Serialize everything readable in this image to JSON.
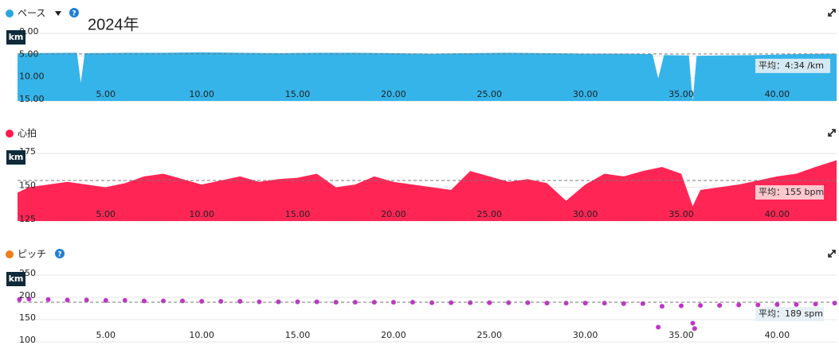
{
  "year_label": "2024年",
  "chart_data": [
    {
      "type": "area",
      "title": "ペース",
      "help": "?",
      "unit": "km",
      "color": "#35b4ea",
      "dot": "#2aa6e0",
      "x": [
        0.4,
        0.5,
        3.5,
        3.7,
        3.9,
        6,
        8,
        10,
        12,
        14,
        16,
        18,
        20,
        22,
        24,
        26,
        28,
        30,
        32,
        33.5,
        33.8,
        34.1,
        35.4,
        35.6,
        35.8,
        37,
        39,
        41,
        43.1
      ],
      "values": [
        4.6,
        4.4,
        4.3,
        11,
        4.4,
        4.3,
        4.3,
        4.2,
        4.3,
        4.4,
        4.3,
        4.3,
        4.4,
        4.5,
        4.4,
        4.3,
        4.4,
        4.5,
        4.5,
        4.6,
        10,
        4.8,
        4.9,
        15,
        5.0,
        4.9,
        4.8,
        4.6,
        4.5
      ],
      "xlim": [
        0.4,
        43.1
      ],
      "ylim": [
        15,
        0
      ],
      "yticks": [
        {
          "value": 0,
          "label": "0.00"
        },
        {
          "value": 5,
          "label": "5.00"
        },
        {
          "value": 10,
          "label": "10.00"
        },
        {
          "value": 15,
          "label": "15.00"
        }
      ],
      "xticks": [
        {
          "value": 5,
          "label": "5.00"
        },
        {
          "value": 10,
          "label": "10.00"
        },
        {
          "value": 15,
          "label": "15.00"
        },
        {
          "value": 20,
          "label": "20.00"
        },
        {
          "value": 25,
          "label": "25.00"
        },
        {
          "value": 30,
          "label": "30.00"
        },
        {
          "value": 35,
          "label": "35.00"
        },
        {
          "value": 40,
          "label": "40.00"
        }
      ],
      "average": {
        "value": 4.567,
        "label": "平均：4:34 /km"
      }
    },
    {
      "type": "area",
      "title": "心拍",
      "unit": "km",
      "color": "#ff2655",
      "dot": "#ff1a4b",
      "x": [
        0.4,
        1,
        2,
        3,
        4,
        5,
        6,
        7,
        8,
        9,
        10,
        11,
        12,
        13,
        14,
        15,
        16,
        17,
        18,
        19,
        20,
        21,
        22,
        23,
        24,
        25,
        26,
        27,
        28,
        29,
        30,
        31,
        32,
        33,
        34,
        35,
        35.6,
        36,
        37,
        38,
        39,
        40,
        41,
        42,
        43.1
      ],
      "values": [
        146,
        150,
        152,
        154,
        152,
        150,
        153,
        158,
        160,
        156,
        152,
        155,
        158,
        154,
        156,
        157,
        160,
        150,
        152,
        158,
        154,
        152,
        150,
        148,
        162,
        158,
        154,
        156,
        153,
        140,
        152,
        160,
        158,
        162,
        165,
        160,
        136,
        148,
        150,
        152,
        155,
        158,
        160,
        165,
        170
      ],
      "xlim": [
        0.4,
        43.1
      ],
      "ylim": [
        125,
        175
      ],
      "yticks": [
        125,
        150,
        175
      ],
      "xticks": [
        {
          "value": 5,
          "label": "5.00"
        },
        {
          "value": 10,
          "label": "10.00"
        },
        {
          "value": 15,
          "label": "15.00"
        },
        {
          "value": 20,
          "label": "20.00"
        },
        {
          "value": 25,
          "label": "25.00"
        },
        {
          "value": 30,
          "label": "30.00"
        },
        {
          "value": 35,
          "label": "35.00"
        },
        {
          "value": 40,
          "label": "40.00"
        }
      ],
      "average": {
        "value": 155,
        "label": "平均：155 bpm"
      }
    },
    {
      "type": "scatter",
      "title": "ピッチ",
      "help": "?",
      "unit": "km",
      "color": "#c035c8",
      "dot": "#f07d16",
      "x": [
        0.5,
        1,
        2,
        3,
        4,
        5,
        6,
        7,
        8,
        9,
        10,
        11,
        12,
        13,
        14,
        15,
        16,
        17,
        18,
        19,
        20,
        21,
        22,
        23,
        24,
        25,
        26,
        27,
        28,
        29,
        30,
        31,
        32,
        33,
        33.8,
        34,
        35,
        35.6,
        35.7,
        36,
        37,
        38,
        39,
        40,
        41,
        42,
        43
      ],
      "values": [
        195,
        196,
        195,
        194,
        194,
        193,
        193,
        192,
        192,
        192,
        191,
        191,
        191,
        190,
        190,
        190,
        190,
        189,
        189,
        189,
        189,
        189,
        188,
        188,
        188,
        188,
        188,
        188,
        187,
        187,
        187,
        187,
        186,
        186,
        133,
        180,
        181,
        142,
        130,
        182,
        182,
        183,
        183,
        184,
        184,
        185,
        187
      ],
      "xlim": [
        0.4,
        43.1
      ],
      "ylim": [
        100,
        250
      ],
      "yticks": [
        100,
        150,
        200,
        250
      ],
      "xticks": [
        {
          "value": 5,
          "label": "5.00"
        },
        {
          "value": 10,
          "label": "10.00"
        },
        {
          "value": 15,
          "label": "15.00"
        },
        {
          "value": 20,
          "label": "20.00"
        },
        {
          "value": 25,
          "label": "25.00"
        },
        {
          "value": 30,
          "label": "30.00"
        },
        {
          "value": 35,
          "label": "35.00"
        },
        {
          "value": 40,
          "label": "40.00"
        }
      ],
      "average": {
        "value": 189,
        "label": "平均：189 spm"
      }
    }
  ]
}
